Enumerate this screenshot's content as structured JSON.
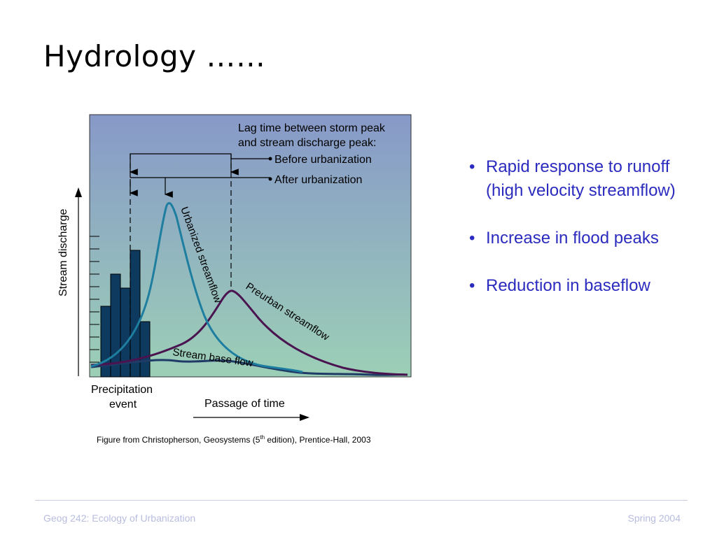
{
  "slide": {
    "title": "Hydrology ……"
  },
  "figure": {
    "legend_heading_line1": "Lag time between storm peak",
    "legend_heading_line2": "and stream discharge peak:",
    "legend_before": "Before urbanization",
    "legend_after": "After urbanization",
    "y_axis_label": "Stream discharge",
    "x_axis_label": "Passage of time",
    "precip_label_line1": "Precipitation",
    "precip_label_line2": "event",
    "curve_urbanized": "Urbanized streamflow",
    "curve_preurban": "Preurban streamflow",
    "curve_base": "Stream base flow",
    "colors": {
      "urbanized": "#1e7ea0",
      "preurban": "#4a1450",
      "base": "#1f3b66",
      "bars": "#0d3a5e",
      "bg_top": "#8799c8",
      "bg_bottom": "#9ccfb6"
    }
  },
  "caption": {
    "prefix": "Figure from Christopherson, Geosystems (5",
    "sup": "th",
    "suffix": " edition), Prentice-Hall, 2003"
  },
  "bullets": [
    "Rapid response to runoff (high velocity streamflow)",
    "Increase in flood peaks",
    "Reduction in baseflow"
  ],
  "footer": {
    "left": "Geog 242:  Ecology of Urbanization",
    "right": "Spring 2004"
  }
}
